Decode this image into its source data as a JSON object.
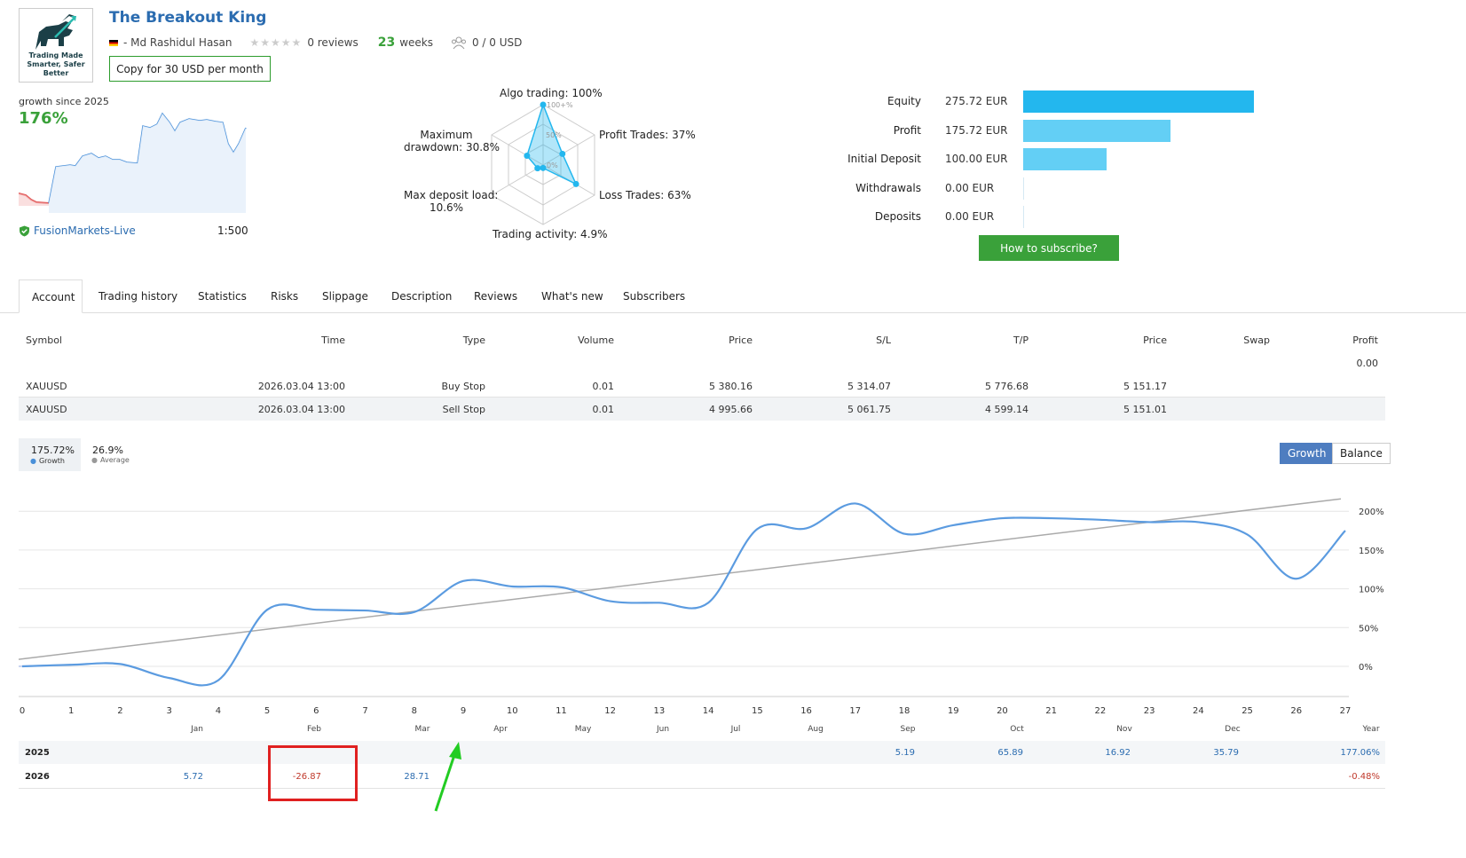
{
  "header": {
    "logo_text": "Trading Made Smarter, Safer Better",
    "title": "The Breakout King",
    "author": "- Md Rashidul Hasan",
    "reviews": "0 reviews",
    "weeks_num": "23",
    "weeks_label": "weeks",
    "subscribers": "0 / 0 USD",
    "copy_button": "Copy for 30 USD per month"
  },
  "summary": {
    "growth_label": "growth since 2025",
    "growth_value": "176%",
    "server": "FusionMarkets-Live",
    "leverage": "1:500"
  },
  "radar": {
    "algo": "Algo trading: 100%",
    "profit_trades": "Profit Trades: 37%",
    "loss_trades": "Loss Trades: 63%",
    "activity": "Trading activity: 4.9%",
    "deposit_load": "Max deposit load:",
    "deposit_load_val": "10.6%",
    "drawdown": "Maximum",
    "drawdown_2": "drawdown: 30.8%",
    "tick_100": "100+%",
    "tick_50": "50%",
    "tick_0": "0%",
    "values": {
      "algo": 1.0,
      "profit": 0.37,
      "loss": 0.63,
      "activity": 0.049,
      "load": 0.106,
      "drawdown": 0.308
    }
  },
  "balances": {
    "items": [
      {
        "label": "Equity",
        "value": "275.72 EUR",
        "amount": 275.72,
        "color": "#23b7ee"
      },
      {
        "label": "Profit",
        "value": "175.72 EUR",
        "amount": 175.72,
        "color": "#63cff5"
      },
      {
        "label": "Initial Deposit",
        "value": "100.00 EUR",
        "amount": 100.0,
        "color": "#63cff5"
      },
      {
        "label": "Withdrawals",
        "value": "0.00 EUR",
        "amount": 0,
        "color": "#63cff5"
      },
      {
        "label": "Deposits",
        "value": "0.00 EUR",
        "amount": 0,
        "color": "#63cff5"
      }
    ],
    "subscribe_button": "How to subscribe?"
  },
  "tabs": [
    "Account",
    "Trading history",
    "Statistics",
    "Risks",
    "Slippage",
    "Description",
    "Reviews",
    "What's new",
    "Subscribers"
  ],
  "orders": {
    "headers": [
      "Symbol",
      "Time",
      "Type",
      "Volume",
      "Price",
      "S/L",
      "T/P",
      "Price",
      "Swap",
      "Profit"
    ],
    "total_profit": "0.00",
    "rows": [
      [
        "XAUUSD",
        "2026.03.04 13:00",
        "Buy Stop",
        "0.01",
        "5 380.16",
        "5 314.07",
        "5 776.68",
        "5 151.17"
      ],
      [
        "XAUUSD",
        "2026.03.04 13:00",
        "Sell Stop",
        "0.01",
        "4 995.66",
        "5 061.75",
        "4 599.14",
        "5 151.01"
      ]
    ]
  },
  "growth_chart": {
    "growth_value": "175.72%",
    "growth_label": "Growth",
    "average_value": "26.9%",
    "average_label": "Average",
    "toggle_growth": "Growth",
    "toggle_balance": "Balance",
    "y_ticks": [
      "200%",
      "150%",
      "100%",
      "50%",
      "0%"
    ],
    "x_ticks": [
      "0",
      "1",
      "2",
      "3",
      "4",
      "5",
      "6",
      "7",
      "8",
      "9",
      "10",
      "11",
      "12",
      "13",
      "14",
      "15",
      "16",
      "17",
      "18",
      "19",
      "20",
      "21",
      "22",
      "23",
      "24",
      "25",
      "26",
      "27"
    ],
    "months": [
      "Jan",
      "Feb",
      "Mar",
      "Apr",
      "May",
      "Jun",
      "Jul",
      "Aug",
      "Sep",
      "Oct",
      "Nov",
      "Dec",
      "Year"
    ]
  },
  "chart_data": {
    "type": "line",
    "x": [
      0,
      1,
      2,
      3,
      4,
      5,
      6,
      7,
      8,
      9,
      10,
      11,
      12,
      13,
      14,
      15,
      16,
      17,
      18,
      19,
      20,
      21,
      22,
      23,
      24,
      25,
      26,
      27
    ],
    "series": [
      {
        "name": "Growth",
        "values": [
          0,
          2,
          3,
          -15,
          -18,
          73,
          73,
          72,
          70,
          110,
          103,
          102,
          84,
          82,
          82,
          177,
          178,
          210,
          171,
          182,
          191,
          191,
          189,
          186,
          186,
          170,
          113,
          175
        ]
      }
    ],
    "trend": [
      9,
      216
    ],
    "ylim": [
      -30,
      215
    ]
  },
  "yearly": {
    "rows": [
      {
        "year": "2025",
        "cells": [
          "",
          "",
          "",
          "",
          "",
          "",
          "",
          "",
          "5.19",
          "65.89",
          "16.92",
          "35.79"
        ],
        "total": "177.06%"
      },
      {
        "year": "2026",
        "cells": [
          "5.72",
          "-26.87",
          "28.71",
          "",
          "",
          "",
          "",
          "",
          "",
          "",
          "",
          ""
        ],
        "total": "-0.48%"
      }
    ]
  },
  "annotations": {
    "box_color": "#e02020",
    "arrow_color": "#22cc22"
  }
}
